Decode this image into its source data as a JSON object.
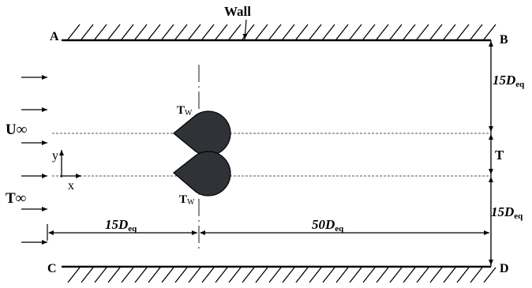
{
  "labels": {
    "wall": "Wall",
    "corner_a": "A",
    "corner_b": "B",
    "corner_c": "C",
    "corner_d": "D",
    "u_inf": "U∞",
    "t_inf": "T∞",
    "y_axis": "y",
    "x_axis": "x",
    "t_wall_top": "T",
    "t_wall_top_sub": "W",
    "t_wall_bottom": "T",
    "t_wall_bottom_sub": "W",
    "gap_t": "T",
    "dim_top_right": "15D",
    "dim_top_right_sub": "eq",
    "dim_bottom_right": "15D",
    "dim_bottom_right_sub": "eq",
    "dim_upstream": "15D",
    "dim_upstream_sub": "eq",
    "dim_downstream": "50D",
    "dim_downstream_sub": "eq"
  },
  "colors": {
    "cylinder_fill": "#2f3338",
    "line": "#000000"
  }
}
